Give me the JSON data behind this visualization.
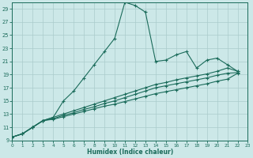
{
  "xlabel": "Humidex (Indice chaleur)",
  "bg_color": "#cce8e8",
  "grid_color": "#aacccc",
  "line_color": "#1a6b5a",
  "xlim": [
    0,
    23
  ],
  "ylim": [
    9,
    30
  ],
  "xticks": [
    0,
    1,
    2,
    3,
    4,
    5,
    6,
    7,
    8,
    9,
    10,
    11,
    12,
    13,
    14,
    15,
    16,
    17,
    18,
    19,
    20,
    21,
    22,
    23
  ],
  "yticks": [
    9,
    11,
    13,
    15,
    17,
    19,
    21,
    23,
    25,
    27,
    29
  ],
  "series": [
    {
      "x": [
        0,
        1,
        2,
        3,
        4,
        5,
        6,
        7,
        8,
        9,
        10,
        11,
        12,
        13,
        14,
        15,
        16,
        17,
        18,
        19,
        20,
        21,
        22
      ],
      "y": [
        9.5,
        10,
        11,
        12,
        12.5,
        15,
        16.5,
        18.5,
        20.5,
        22.5,
        24.5,
        30,
        29.5,
        28.5,
        21,
        21.2,
        22,
        22.5,
        20,
        21.2,
        21.5,
        20.5,
        19.5
      ]
    },
    {
      "x": [
        0,
        1,
        2,
        3,
        4,
        5,
        6,
        7,
        8,
        9,
        10,
        11,
        12,
        13,
        14,
        15,
        16,
        17,
        18,
        19,
        20,
        21,
        22
      ],
      "y": [
        9.5,
        10,
        11,
        12,
        12.5,
        13,
        13.5,
        14,
        14.5,
        15,
        15.5,
        16,
        16.5,
        17,
        17.5,
        17.8,
        18.2,
        18.5,
        18.8,
        19.1,
        19.5,
        20.0,
        19.5
      ]
    },
    {
      "x": [
        0,
        1,
        2,
        3,
        4,
        5,
        6,
        7,
        8,
        9,
        10,
        11,
        12,
        13,
        14,
        15,
        16,
        17,
        18,
        19,
        20,
        21,
        22
      ],
      "y": [
        9.5,
        10,
        11,
        12,
        12.3,
        12.8,
        13.2,
        13.7,
        14.1,
        14.6,
        15.0,
        15.5,
        16.0,
        16.5,
        17.0,
        17.3,
        17.6,
        17.9,
        18.2,
        18.5,
        18.9,
        19.2,
        19.3
      ]
    },
    {
      "x": [
        0,
        1,
        2,
        3,
        4,
        5,
        6,
        7,
        8,
        9,
        10,
        11,
        12,
        13,
        14,
        15,
        16,
        17,
        18,
        19,
        20,
        21,
        22
      ],
      "y": [
        9.5,
        10,
        11,
        12,
        12.2,
        12.6,
        13.0,
        13.4,
        13.8,
        14.2,
        14.5,
        14.9,
        15.3,
        15.7,
        16.1,
        16.4,
        16.7,
        17.0,
        17.3,
        17.6,
        18.0,
        18.3,
        19.2
      ]
    }
  ]
}
